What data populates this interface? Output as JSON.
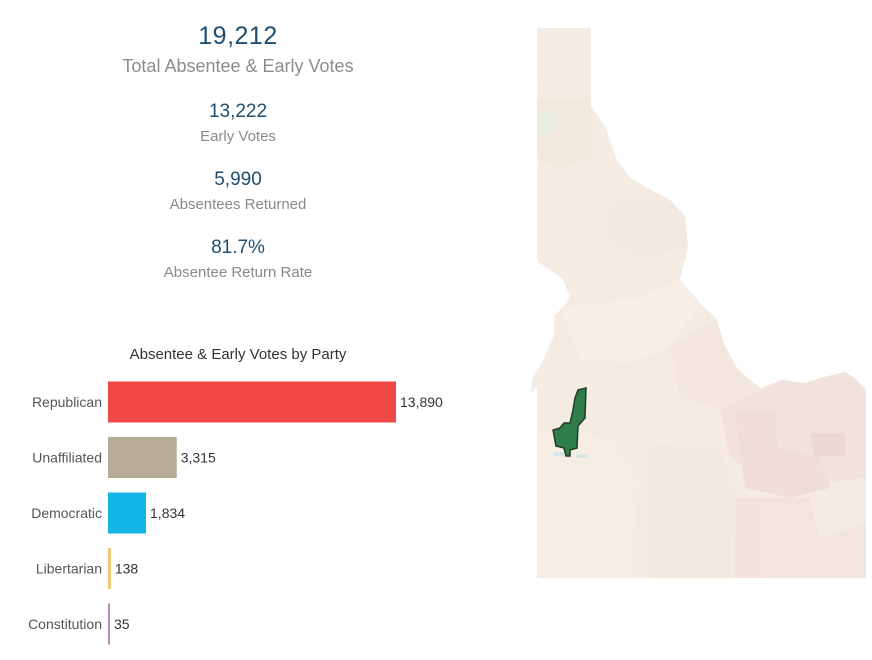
{
  "summary": {
    "total_votes": "19,212",
    "total_label": "Total Absentee & Early Votes",
    "early_votes": "13,222",
    "early_label": "Early Votes",
    "absentees_returned": "5,990",
    "absentees_label": "Absentees Returned",
    "return_rate": "81.7%",
    "return_rate_label": "Absentee Return Rate"
  },
  "chart_data": {
    "type": "bar",
    "orientation": "horizontal",
    "title": "Absentee & Early Votes by Party",
    "categories": [
      "Republican",
      "Unaffiliated",
      "Democratic",
      "Libertarian",
      "Constitution"
    ],
    "values": [
      13890,
      3315,
      1834,
      138,
      35
    ],
    "value_labels": [
      "13,890",
      "3,315",
      "1,834",
      "138",
      "35"
    ],
    "colors": [
      "#ef4646",
      "#b5ab96",
      "#12b5e5",
      "#f2c66b",
      "#b38db8"
    ],
    "xlim": [
      0,
      13890
    ],
    "grid": false,
    "legend": "none"
  },
  "map": {
    "region": "Idaho",
    "base_color": "#f3ece4",
    "highlight_color": "#2e7d4a",
    "highlight_outline": "#1e3d26"
  }
}
